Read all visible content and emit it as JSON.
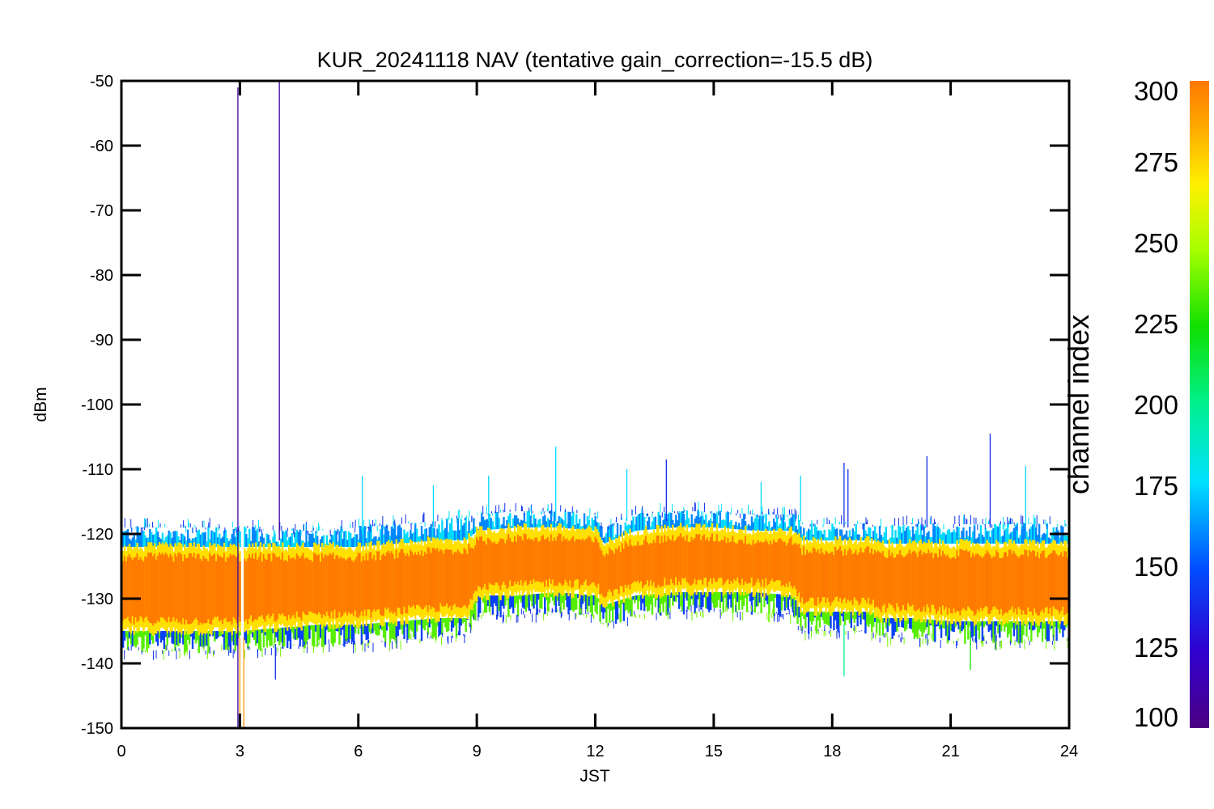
{
  "chart_data": {
    "type": "line",
    "title": "KUR_20241118 NAV (tentative gain_correction=-15.5 dB)",
    "xlabel": "JST",
    "ylabel": "dBm",
    "xlim": [
      0,
      24
    ],
    "ylim": [
      -150,
      -50
    ],
    "x_ticks": [
      "0",
      "3",
      "6",
      "9",
      "12",
      "15",
      "18",
      "21",
      "24"
    ],
    "y_ticks": [
      "-50",
      "-60",
      "-70",
      "-80",
      "-90",
      "-100",
      "-110",
      "-120",
      "-130",
      "-140",
      "-150"
    ],
    "grid": false,
    "colorbar": {
      "label": "channel index",
      "range": [
        100,
        300
      ],
      "ticks": [
        "100",
        "125",
        "150",
        "175",
        "200",
        "225",
        "250",
        "275",
        "300"
      ],
      "colormap": "rainbow"
    },
    "envelope": {
      "x": [
        0,
        1,
        2,
        3,
        4,
        5,
        6,
        7,
        8,
        8.7,
        9,
        10,
        11,
        12,
        12.2,
        13,
        14,
        15,
        16,
        17,
        17.2,
        18,
        19,
        19.2,
        20,
        21,
        22,
        23,
        24
      ],
      "upper": [
        -120,
        -120,
        -120,
        -120,
        -120.5,
        -120.5,
        -120,
        -119.5,
        -119,
        -118.5,
        -118,
        -117.5,
        -117.5,
        -118,
        -120,
        -118,
        -117.5,
        -117.5,
        -118,
        -118,
        -119.5,
        -119.5,
        -119.5,
        -120,
        -119.5,
        -119.5,
        -119.5,
        -119.5,
        -119.5
      ],
      "lower": [
        -137,
        -137,
        -137,
        -137,
        -136.5,
        -136,
        -136,
        -135.5,
        -135,
        -134.5,
        -131.5,
        -131.5,
        -131,
        -131.5,
        -133,
        -131.5,
        -131,
        -131,
        -131,
        -131.5,
        -134,
        -134,
        -134,
        -135,
        -135,
        -135.5,
        -135.5,
        -135.5,
        -135.5
      ],
      "core_upper": [
        -122,
        -122,
        -122,
        -122,
        -122,
        -122,
        -122,
        -121.5,
        -121,
        -121,
        -119.5,
        -119,
        -119,
        -119.5,
        -121.5,
        -119.5,
        -119,
        -119,
        -119.5,
        -119.5,
        -121,
        -121,
        -121,
        -121.5,
        -121.5,
        -121.5,
        -121.5,
        -121.5,
        -121.5
      ],
      "core_lower": [
        -135,
        -135,
        -135,
        -135,
        -134.5,
        -134,
        -134,
        -133.5,
        -133,
        -133,
        -129.5,
        -129.5,
        -129,
        -129.5,
        -131,
        -129.5,
        -129,
        -129,
        -129,
        -129.5,
        -132,
        -132,
        -132,
        -133,
        -133,
        -133.5,
        -133.5,
        -133.5,
        -133.5
      ]
    },
    "gap": {
      "x_start": 3.0,
      "x_end": 3.1
    },
    "spikes": [
      {
        "x": 2.95,
        "y_top": -51,
        "y_bottom": -150,
        "channel": 110
      },
      {
        "x": 4.0,
        "y_top": -50,
        "y_bottom": -121,
        "channel": 110
      },
      {
        "x": 3.1,
        "y_top": -136,
        "y_bottom": -150,
        "channel": 290
      },
      {
        "x": 3.0,
        "y_top": -136,
        "y_bottom": -150,
        "channel": 290
      },
      {
        "x": 6.1,
        "y_top": -111,
        "y_bottom": -120,
        "channel": 175
      },
      {
        "x": 7.9,
        "y_top": -112.5,
        "y_bottom": -119,
        "channel": 175
      },
      {
        "x": 9.3,
        "y_top": -111,
        "y_bottom": -118,
        "channel": 175
      },
      {
        "x": 11.0,
        "y_top": -106.5,
        "y_bottom": -118,
        "channel": 175
      },
      {
        "x": 12.8,
        "y_top": -110,
        "y_bottom": -118,
        "channel": 175
      },
      {
        "x": 13.8,
        "y_top": -108.5,
        "y_bottom": -118,
        "channel": 140
      },
      {
        "x": 16.2,
        "y_top": -112,
        "y_bottom": -118,
        "channel": 175
      },
      {
        "x": 17.2,
        "y_top": -111,
        "y_bottom": -118,
        "channel": 175
      },
      {
        "x": 18.3,
        "y_top": -109,
        "y_bottom": -119,
        "channel": 140
      },
      {
        "x": 18.4,
        "y_top": -110,
        "y_bottom": -119,
        "channel": 140
      },
      {
        "x": 20.4,
        "y_top": -108,
        "y_bottom": -119,
        "channel": 140
      },
      {
        "x": 22.0,
        "y_top": -104.5,
        "y_bottom": -119,
        "channel": 140
      },
      {
        "x": 22.9,
        "y_top": -109.5,
        "y_bottom": -119,
        "channel": 175
      },
      {
        "x": 3.9,
        "y_top": -142.5,
        "y_bottom": -137,
        "channel": 140
      },
      {
        "x": 18.3,
        "y_top": -142,
        "y_bottom": -134,
        "channel": 200
      },
      {
        "x": 21.5,
        "y_top": -141,
        "y_bottom": -135,
        "channel": 225
      }
    ]
  }
}
